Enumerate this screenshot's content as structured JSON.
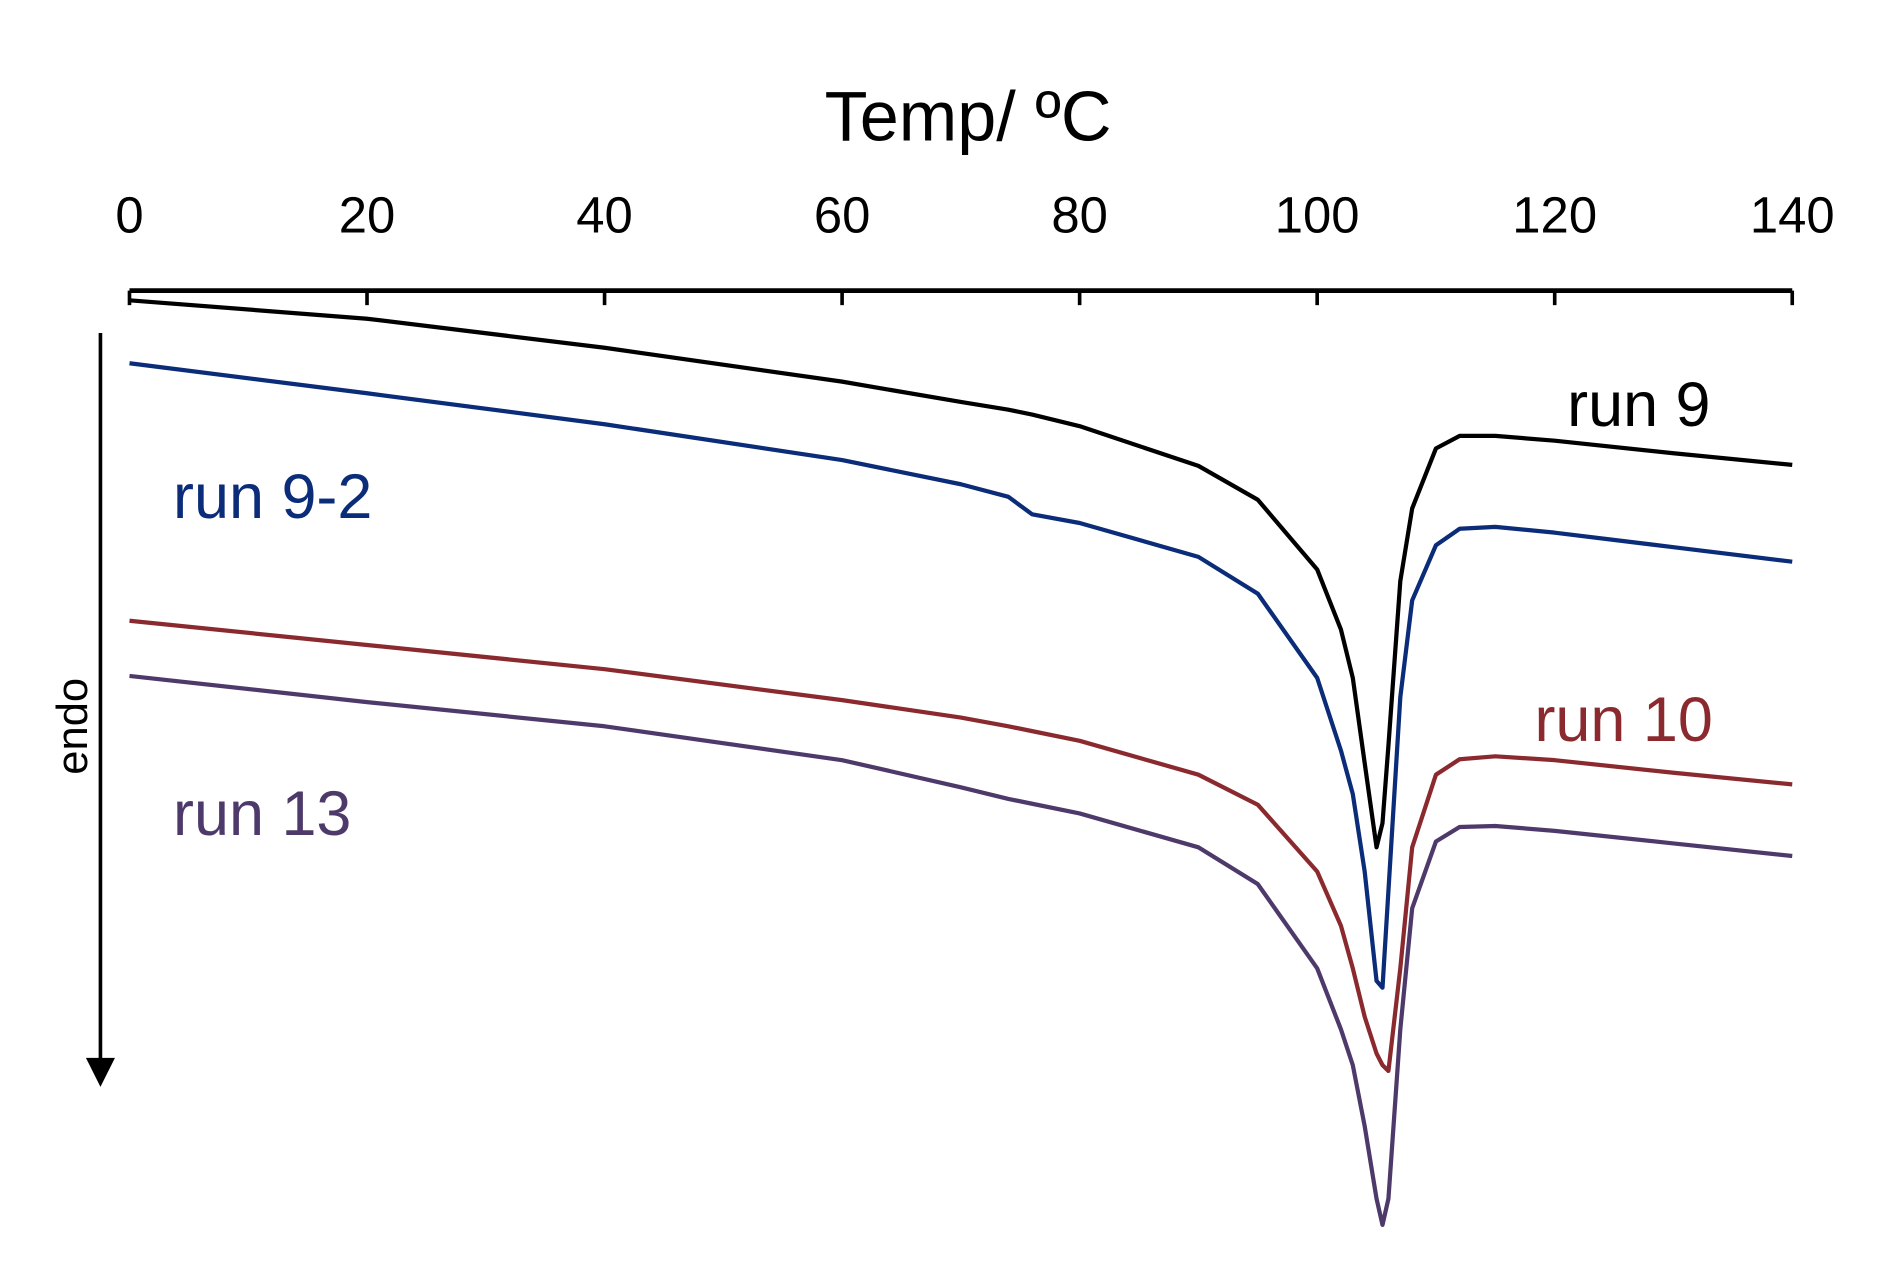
{
  "chart_data": {
    "type": "line",
    "x_label": "Temp/ ºC",
    "y_label": "endo",
    "x": [
      0,
      20,
      40,
      60,
      70,
      74,
      76,
      80,
      90,
      95,
      100,
      102,
      103,
      104,
      105,
      105.5,
      106,
      107,
      108,
      110,
      112,
      115,
      120,
      130,
      140
    ],
    "series": [
      {
        "name": "run 9",
        "color": "#000000",
        "values": [
          -1,
          -2.9,
          -5.9,
          -9.4,
          -11.5,
          -12.3,
          -12.8,
          -14,
          -18.1,
          -21.6,
          -28.8,
          -35,
          -40,
          -48.8,
          -57.5,
          -55,
          -47,
          -30,
          -22.5,
          -16.3,
          -15,
          -15,
          -15.5,
          -16.8,
          -18
        ]
      },
      {
        "name": "run 9-2",
        "color": "#0b2c78",
        "values": [
          -7.5,
          -10.6,
          -13.8,
          -17.5,
          -20,
          -21.3,
          -23.1,
          -24,
          -27.5,
          -31.3,
          -40,
          -47.5,
          -52,
          -60,
          -71.3,
          -72,
          -62,
          -42,
          -32,
          -26.3,
          -24.6,
          -24.4,
          -25,
          -26.5,
          -28
        ]
      },
      {
        "name": "run 10",
        "color": "#8b2a2e",
        "values": [
          -34.1,
          -36.6,
          -39.1,
          -42.3,
          -44.1,
          -45,
          -45.5,
          -46.5,
          -50,
          -53.1,
          -60,
          -65.6,
          -70,
          -75,
          -78.8,
          -80,
          -80.6,
          -70,
          -57.5,
          -50,
          -48.4,
          -48.1,
          -48.5,
          -49.8,
          -51
        ]
      },
      {
        "name": "run 13",
        "color": "#4e3a6a",
        "values": [
          -39.8,
          -42.5,
          -45,
          -48.5,
          -51.3,
          -52.5,
          -53,
          -54,
          -57.5,
          -61.3,
          -70,
          -76.3,
          -80,
          -86.3,
          -93.8,
          -96.5,
          -93.8,
          -76.3,
          -63.8,
          -56.9,
          -55.4,
          -55.3,
          -55.8,
          -57.1,
          -58.4
        ]
      }
    ],
    "xlim": [
      0,
      140
    ],
    "xticks": [
      0,
      20,
      40,
      60,
      80,
      100,
      120,
      140
    ],
    "ylim": [
      -100,
      0
    ]
  }
}
